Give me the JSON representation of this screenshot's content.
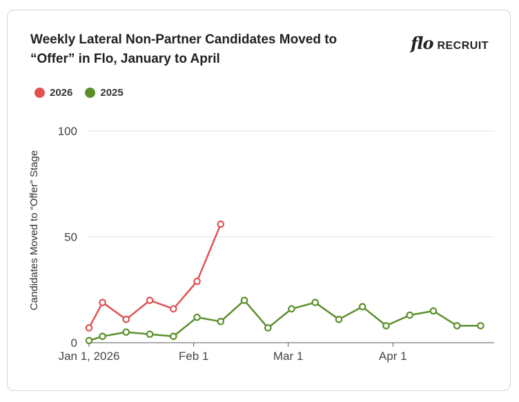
{
  "header": {
    "title": "Weekly Lateral Non-Partner Candidates Moved to “Offer” in Flo, January to April"
  },
  "logo": {
    "mark": "flo",
    "word": "RECRUIT"
  },
  "colors": {
    "s2026": "#e05252",
    "s2025": "#5a8f2a",
    "grid": "#e5e5e5",
    "axis": "#444444",
    "text": "#333333"
  },
  "chart_data": {
    "type": "line",
    "title": "Weekly Lateral Non-Partner Candidates Moved to “Offer” in Flo, January to April",
    "xlabel": "",
    "ylabel": "Candidates Moved to “Offer” Stage",
    "ylim": [
      0,
      100
    ],
    "yticks": [
      0,
      50,
      100
    ],
    "xlim": [
      1,
      121
    ],
    "xticks": [
      {
        "day": 1,
        "label": "Jan 1, 2026"
      },
      {
        "day": 32,
        "label": "Feb 1"
      },
      {
        "day": 60,
        "label": "Mar 1"
      },
      {
        "day": 91,
        "label": "Apr 1"
      }
    ],
    "legend": "top-left",
    "grid": true,
    "series": [
      {
        "name": "2026",
        "color": "#e05252",
        "x": [
          1,
          5,
          12,
          19,
          26,
          33,
          40
        ],
        "y": [
          7,
          19,
          11,
          20,
          16,
          29,
          56
        ]
      },
      {
        "name": "2025",
        "color": "#5a8f2a",
        "x": [
          1,
          5,
          12,
          19,
          26,
          33,
          40,
          47,
          54,
          61,
          68,
          75,
          82,
          89,
          96,
          103,
          110,
          117
        ],
        "y": [
          1,
          3,
          5,
          4,
          3,
          12,
          10,
          20,
          7,
          16,
          19,
          11,
          17,
          8,
          13,
          15,
          8,
          8
        ]
      }
    ]
  }
}
